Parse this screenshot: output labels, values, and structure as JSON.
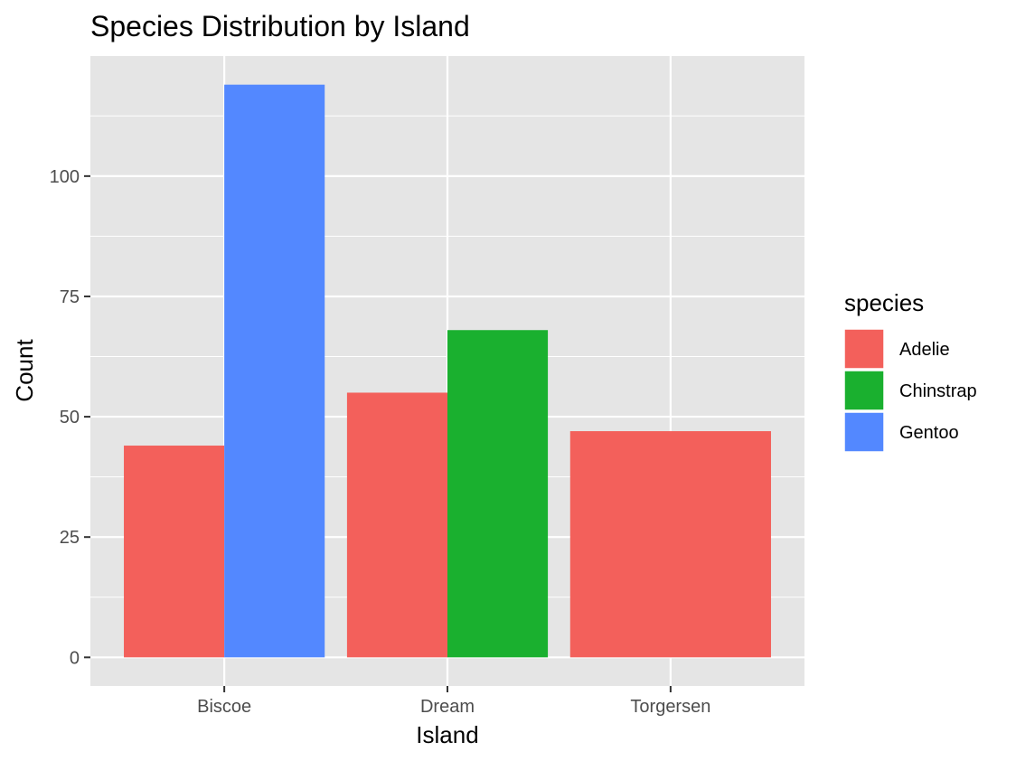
{
  "chart_data": {
    "type": "bar",
    "title": "Species Distribution by Island",
    "xlabel": "Island",
    "ylabel": "Count",
    "categories": [
      "Biscoe",
      "Dream",
      "Torgersen"
    ],
    "yticks": [
      0,
      25,
      50,
      75,
      100
    ],
    "ylim": [
      -5.95,
      124.95
    ],
    "grid": true,
    "legend_position": "right",
    "legend_title": "species",
    "series": [
      {
        "name": "Adelie",
        "color": "#F3605B"
      },
      {
        "name": "Chinstrap",
        "color": "#1AB02F"
      },
      {
        "name": "Gentoo",
        "color": "#5388FF"
      }
    ],
    "bars": [
      {
        "category": "Biscoe",
        "species": "Adelie",
        "value": 44
      },
      {
        "category": "Biscoe",
        "species": "Gentoo",
        "value": 119
      },
      {
        "category": "Dream",
        "species": "Adelie",
        "value": 55
      },
      {
        "category": "Dream",
        "species": "Chinstrap",
        "value": 68
      },
      {
        "category": "Torgersen",
        "species": "Adelie",
        "value": 47
      }
    ]
  }
}
